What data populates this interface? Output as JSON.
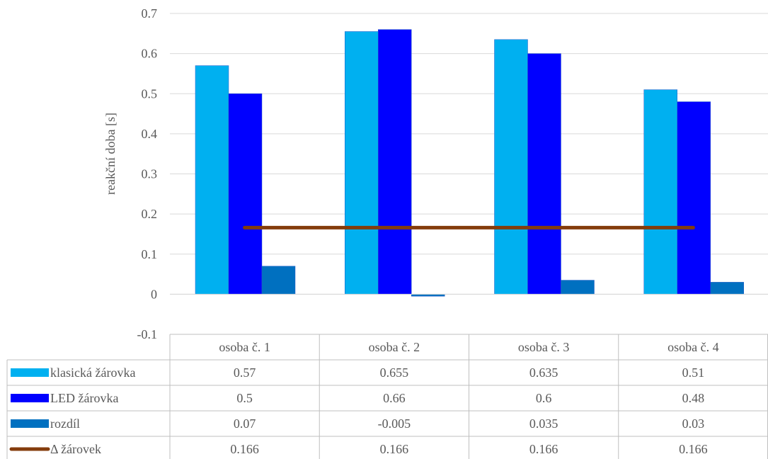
{
  "chart_data": {
    "type": "bar",
    "categories": [
      "osoba č. 1",
      "osoba č. 2",
      "osoba č. 3",
      "osoba č. 4"
    ],
    "series": [
      {
        "name": "klasická žárovka",
        "kind": "bar",
        "color": "#00B0F0",
        "values": [
          0.57,
          0.655,
          0.635,
          0.51
        ]
      },
      {
        "name": "LED žárovka",
        "kind": "bar",
        "color": "#0000FF",
        "values": [
          0.5,
          0.66,
          0.6,
          0.48
        ]
      },
      {
        "name": "rozdíl",
        "kind": "bar",
        "color": "#0070C0",
        "values": [
          0.07,
          -0.005,
          0.035,
          0.03
        ]
      },
      {
        "name": "Δ žárovek",
        "kind": "line",
        "color": "#843C0C",
        "values": [
          0.166,
          0.166,
          0.166,
          0.166
        ]
      }
    ],
    "table_values": [
      [
        "0.57",
        "0.655",
        "0.635",
        "0.51"
      ],
      [
        "0.5",
        "0.66",
        "0.6",
        "0.48"
      ],
      [
        "0.07",
        "-0.005",
        "0.035",
        "0.03"
      ],
      [
        "0.166",
        "0.166",
        "0.166",
        "0.166"
      ]
    ],
    "ylabel": "reakční doba [s]",
    "ylim": [
      -0.1,
      0.7
    ],
    "yticks": [
      "-0.1",
      "0",
      "0.1",
      "0.2",
      "0.3",
      "0.4",
      "0.5",
      "0.6",
      "0.7"
    ],
    "grid": true,
    "legend": "data-table"
  }
}
